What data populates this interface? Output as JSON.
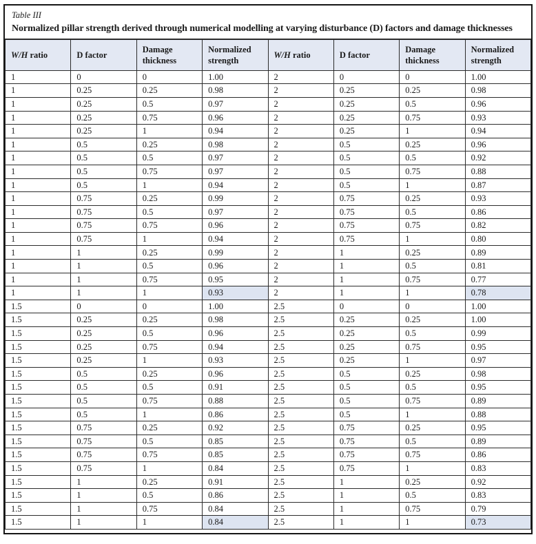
{
  "table": {
    "caption": "Table III",
    "title": "Normalized pillar strength derived through numerical modelling at varying disturbance (D) factors and damage thicknesses",
    "columns": [
      {
        "label": "W/H ratio",
        "italic_prefix": "W/H"
      },
      {
        "label": "D factor"
      },
      {
        "label": "Damage thickness"
      },
      {
        "label": "Normalized strength"
      },
      {
        "label": "W/H ratio",
        "italic_prefix": "W/H"
      },
      {
        "label": "D factor"
      },
      {
        "label": "Damage thickness"
      },
      {
        "label": "Normalized strength"
      }
    ],
    "rows": [
      [
        "1",
        "0",
        "0",
        "1.00",
        "2",
        "0",
        "0",
        "1.00"
      ],
      [
        "1",
        "0.25",
        "0.25",
        "0.98",
        "2",
        "0.25",
        "0.25",
        "0.98"
      ],
      [
        "1",
        "0.25",
        "0.5",
        "0.97",
        "2",
        "0.25",
        "0.5",
        "0.96"
      ],
      [
        "1",
        "0.25",
        "0.75",
        "0.96",
        "2",
        "0.25",
        "0.75",
        "0.93"
      ],
      [
        "1",
        "0.25",
        "1",
        "0.94",
        "2",
        "0.25",
        "1",
        "0.94"
      ],
      [
        "1",
        "0.5",
        "0.25",
        "0.98",
        "2",
        "0.5",
        "0.25",
        "0.96"
      ],
      [
        "1",
        "0.5",
        "0.5",
        "0.97",
        "2",
        "0.5",
        "0.5",
        "0.92"
      ],
      [
        "1",
        "0.5",
        "0.75",
        "0.97",
        "2",
        "0.5",
        "0.75",
        "0.88"
      ],
      [
        "1",
        "0.5",
        "1",
        "0.94",
        "2",
        "0.5",
        "1",
        "0.87"
      ],
      [
        "1",
        "0.75",
        "0.25",
        "0.99",
        "2",
        "0.75",
        "0.25",
        "0.93"
      ],
      [
        "1",
        "0.75",
        "0.5",
        "0.97",
        "2",
        "0.75",
        "0.5",
        "0.86"
      ],
      [
        "1",
        "0.75",
        "0.75",
        "0.96",
        "2",
        "0.75",
        "0.75",
        "0.82"
      ],
      [
        "1",
        "0.75",
        "1",
        "0.94",
        "2",
        "0.75",
        "1",
        "0.80"
      ],
      [
        "1",
        "1",
        "0.25",
        "0.99",
        "2",
        "1",
        "0.25",
        "0.89"
      ],
      [
        "1",
        "1",
        "0.5",
        "0.96",
        "2",
        "1",
        "0.5",
        "0.81"
      ],
      [
        "1",
        "1",
        "0.75",
        "0.95",
        "2",
        "1",
        "0.75",
        "0.77"
      ],
      [
        "1",
        "1",
        "1",
        "0.93",
        "2",
        "1",
        "1",
        "0.78"
      ],
      [
        "1.5",
        "0",
        "0",
        "1.00",
        "2.5",
        "0",
        "0",
        "1.00"
      ],
      [
        "1.5",
        "0.25",
        "0.25",
        "0.98",
        "2.5",
        "0.25",
        "0.25",
        "1.00"
      ],
      [
        "1.5",
        "0.25",
        "0.5",
        "0.96",
        "2.5",
        "0.25",
        "0.5",
        "0.99"
      ],
      [
        "1.5",
        "0.25",
        "0.75",
        "0.94",
        "2.5",
        "0.25",
        "0.75",
        "0.95"
      ],
      [
        "1.5",
        "0.25",
        "1",
        "0.93",
        "2.5",
        "0.25",
        "1",
        "0.97"
      ],
      [
        "1.5",
        "0.5",
        "0.25",
        "0.96",
        "2.5",
        "0.5",
        "0.25",
        "0.98"
      ],
      [
        "1.5",
        "0.5",
        "0.5",
        "0.91",
        "2.5",
        "0.5",
        "0.5",
        "0.95"
      ],
      [
        "1.5",
        "0.5",
        "0.75",
        "0.88",
        "2.5",
        "0.5",
        "0.75",
        "0.89"
      ],
      [
        "1.5",
        "0.5",
        "1",
        "0.86",
        "2.5",
        "0.5",
        "1",
        "0.88"
      ],
      [
        "1.5",
        "0.75",
        "0.25",
        "0.92",
        "2.5",
        "0.75",
        "0.25",
        "0.95"
      ],
      [
        "1.5",
        "0.75",
        "0.5",
        "0.85",
        "2.5",
        "0.75",
        "0.5",
        "0.89"
      ],
      [
        "1.5",
        "0.75",
        "0.75",
        "0.85",
        "2.5",
        "0.75",
        "0.75",
        "0.86"
      ],
      [
        "1.5",
        "0.75",
        "1",
        "0.84",
        "2.5",
        "0.75",
        "1",
        "0.83"
      ],
      [
        "1.5",
        "1",
        "0.25",
        "0.91",
        "2.5",
        "1",
        "0.25",
        "0.92"
      ],
      [
        "1.5",
        "1",
        "0.5",
        "0.86",
        "2.5",
        "1",
        "0.5",
        "0.83"
      ],
      [
        "1.5",
        "1",
        "0.75",
        "0.84",
        "2.5",
        "1",
        "0.75",
        "0.79"
      ],
      [
        "1.5",
        "1",
        "1",
        "0.84",
        "2.5",
        "1",
        "1",
        "0.73"
      ]
    ],
    "highlighted_cells": [
      [
        16,
        3
      ],
      [
        16,
        7
      ],
      [
        33,
        3
      ],
      [
        33,
        7
      ]
    ],
    "colors": {
      "header_bg": "#e3e8f3",
      "highlight_bg": "#dde4f1",
      "border": "#2b2b2b",
      "frame": "#151515",
      "text": "#1a1a1a"
    }
  }
}
